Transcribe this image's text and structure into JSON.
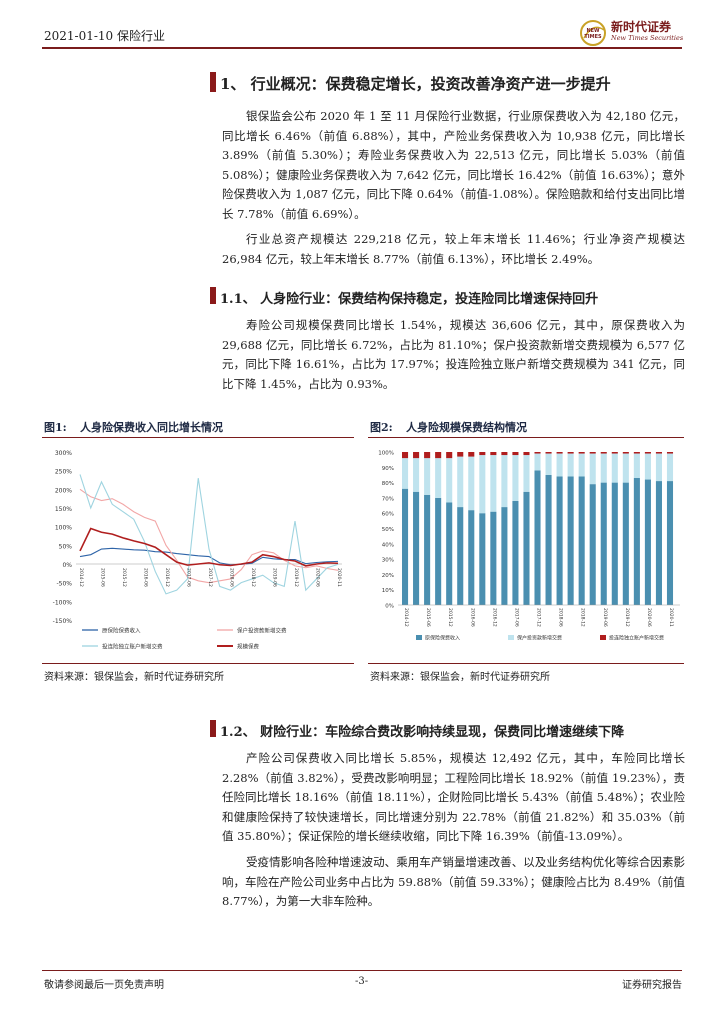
{
  "header": {
    "date_sector": "2021-01-10 保险行业"
  },
  "logo": {
    "cn": "新时代证券",
    "en": "New Times Securities",
    "badge_line1": "NEW",
    "badge_line2": "TIMES"
  },
  "section1": {
    "title": "1、 行业概况：保费稳定增长，投资改善净资产进一步提升",
    "para1": "银保监会公布 2020 年 1 至 11 月保险行业数据，行业原保费收入为 42,180 亿元，同比增长 6.46%（前值 6.88%），其中，产险业务保费收入为 10,938 亿元，同比增长 3.89%（前值 5.30%）；寿险业务保费收入为 22,513 亿元，同比增长 5.03%（前值 5.08%）；健康险业务保费收入为 7,642 亿元，同比增长 16.42%（前值 16.63%）；意外险保费收入为 1,087 亿元，同比下降 0.64%（前值-1.08%）。保险赔款和给付支出同比增长 7.78%（前值 6.69%）。",
    "para2": "行业总资产规模达 229,218 亿元，较上年末增长 11.46%；行业净资产规模达 26,984 亿元，较上年末增长 8.77%（前值 6.13%），环比增长 2.49%。"
  },
  "section11": {
    "title": "1.1、 人身险行业：保费结构保持稳定，投连险同比增速保持回升",
    "para": "寿险公司规模保费同比增长 1.54%，规模达 36,606 亿元，其中，原保费收入为 29,688 亿元，同比增长 6.72%，占比为 81.10%；保户投资款新增交费规模为 6,577 亿元，同比下降 16.61%，占比为 17.97%；投连险独立账户新增交费规模为 341 亿元，同比下降 1.45%，占比为 0.93%。"
  },
  "figure1": {
    "label": "图1:",
    "title": "人身险保费收入同比增长情况",
    "yticks": [
      "300%",
      "250%",
      "200%",
      "150%",
      "100%",
      "50%",
      "0%",
      "-50%",
      "-100%",
      "-150%"
    ],
    "legend": [
      "原保险保费收入",
      "保户投资款新增交费",
      "投连险独立账户新增交费",
      "规模保费"
    ],
    "colors": [
      "#2e64a8",
      "#f2a6a6",
      "#9fd4e0",
      "#b01e1e"
    ],
    "source": "资料来源：银保监会，新时代证券研究所",
    "xticks": [
      "2014-12",
      "2015-03",
      "2015-06",
      "2015-09",
      "2015-12",
      "2016-03",
      "2016-06",
      "2016-09",
      "2016-12",
      "2017-03",
      "2017-06",
      "2017-09",
      "2017-12",
      "2018-03",
      "2018-06",
      "2018-09",
      "2018-12",
      "2019-03",
      "2019-06",
      "2019-09",
      "2019-12",
      "2020-03",
      "2020-06",
      "2020-09",
      "2020-11"
    ]
  },
  "figure2": {
    "label": "图2:",
    "title": "人身险规模保费结构情况",
    "yticks": [
      "100%",
      "90%",
      "80%",
      "70%",
      "60%",
      "50%",
      "40%",
      "30%",
      "20%",
      "10%",
      "0%"
    ],
    "legend": [
      "原保险保费收入",
      "保户投资款新增交费",
      "投连险独立账户新增交费"
    ],
    "colors": [
      "#4a8fb0",
      "#bfe3ee",
      "#b01e1e"
    ],
    "source": "资料来源：银保监会，新时代证券研究所",
    "xticks": [
      "2014-12",
      "2015-03",
      "2015-06",
      "2015-09",
      "2015-12",
      "2016-03",
      "2016-06",
      "2016-09",
      "2016-12",
      "2017-03",
      "2017-06",
      "2017-09",
      "2017-12",
      "2018-03",
      "2018-06",
      "2018-09",
      "2018-12",
      "2019-03",
      "2019-06",
      "2019-09",
      "2019-12",
      "2020-03",
      "2020-06",
      "2020-09",
      "2020-11"
    ]
  },
  "chart_data": [
    {
      "type": "line",
      "ylim": [
        -150,
        300
      ],
      "x": [
        "2014-12",
        "2015-03",
        "2015-06",
        "2015-09",
        "2015-12",
        "2016-03",
        "2016-06",
        "2016-09",
        "2016-12",
        "2017-03",
        "2017-06",
        "2017-09",
        "2017-12",
        "2018-03",
        "2018-06",
        "2018-09",
        "2018-12",
        "2019-03",
        "2019-06",
        "2019-09",
        "2019-12",
        "2020-03",
        "2020-06",
        "2020-09",
        "2020-11"
      ],
      "series": [
        {
          "name": "原保险保费收入",
          "values": [
            20,
            25,
            40,
            42,
            40,
            38,
            37,
            33,
            32,
            28,
            25,
            22,
            20,
            3,
            -2,
            -1,
            2,
            18,
            14,
            12,
            12,
            1,
            4,
            6,
            7
          ]
        },
        {
          "name": "保户投资款新增交费",
          "values": [
            200,
            180,
            170,
            175,
            160,
            140,
            125,
            115,
            50,
            10,
            -35,
            -45,
            -50,
            -45,
            -40,
            -15,
            25,
            35,
            30,
            10,
            -5,
            -10,
            -5,
            -12,
            -17
          ]
        },
        {
          "name": "投连险独立账户新增交费",
          "values": [
            240,
            150,
            220,
            160,
            140,
            120,
            60,
            -20,
            -80,
            -70,
            -40,
            230,
            40,
            -60,
            -70,
            -50,
            -40,
            -30,
            -50,
            -60,
            115,
            -70,
            -40,
            -10,
            -1
          ]
        },
        {
          "name": "规模保费",
          "values": [
            35,
            95,
            85,
            80,
            70,
            62,
            55,
            45,
            25,
            5,
            -3,
            0,
            3,
            -2,
            -4,
            0,
            5,
            25,
            20,
            12,
            8,
            -5,
            0,
            3,
            2
          ]
        }
      ]
    },
    {
      "type": "bar",
      "stacked": true,
      "ylim": [
        0,
        100
      ],
      "x": [
        "2014-12",
        "2015-03",
        "2015-06",
        "2015-09",
        "2015-12",
        "2016-03",
        "2016-06",
        "2016-09",
        "2016-12",
        "2017-03",
        "2017-06",
        "2017-09",
        "2017-12",
        "2018-03",
        "2018-06",
        "2018-09",
        "2018-12",
        "2019-03",
        "2019-06",
        "2019-09",
        "2019-12",
        "2020-03",
        "2020-06",
        "2020-09",
        "2020-11"
      ],
      "series": [
        {
          "name": "原保险保费收入",
          "values": [
            76,
            74,
            72,
            70,
            67,
            64,
            62,
            60,
            61,
            64,
            68,
            74,
            88,
            85,
            84,
            84,
            84,
            79,
            80,
            80,
            80,
            83,
            82,
            81,
            81
          ]
        },
        {
          "name": "保户投资款新增交费",
          "values": [
            20,
            22,
            24,
            26,
            29,
            33,
            35,
            38,
            37,
            34,
            30,
            24,
            11,
            14,
            15,
            15,
            15,
            20,
            19,
            19,
            19,
            16,
            17,
            18,
            18
          ]
        },
        {
          "name": "投连险独立账户新增交费",
          "values": [
            4,
            4,
            4,
            4,
            4,
            3,
            3,
            2,
            2,
            2,
            2,
            2,
            1,
            1,
            1,
            1,
            1,
            1,
            1,
            1,
            1,
            1,
            1,
            1,
            1
          ]
        }
      ]
    }
  ],
  "section12": {
    "title": "1.2、 财险行业：车险综合费改影响持续显现，保费同比增速继续下降",
    "para1": "产险公司保费收入同比增长 5.85%，规模达 12,492 亿元，其中，车险同比增长 2.28%（前值 3.82%），受费改影响明显；工程险同比增长 18.92%（前值 19.23%），责任险同比增长 18.16%（前值 18.11%），企财险同比增长 5.43%（前值 5.48%）；农业险和健康险保持了较快速增长，同比增速分别为 22.78%（前值 21.82%）和 35.03%（前值 35.80%）；保证保险的增长继续收缩，同比下降 16.39%（前值-13.09%）。",
    "para2": "受疫情影响各险种增速波动、乘用车产销量增速改善、以及业务结构优化等综合因素影响，车险在产险公司业务中占比为 59.88%（前值 59.33%）；健康险占比为 8.49%（前值 8.77%），为第一大非车险种。"
  },
  "footer": {
    "left": "敬请参阅最后一页免责声明",
    "center": "-3-",
    "right": "证券研究报告"
  }
}
